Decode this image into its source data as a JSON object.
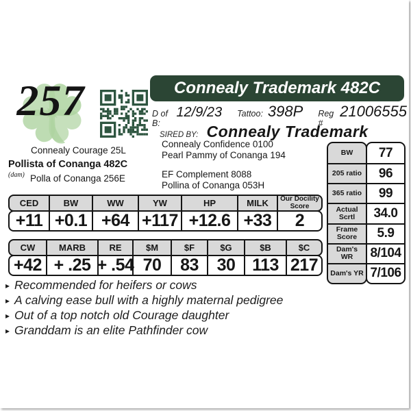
{
  "lot": {
    "number": "257"
  },
  "title_bar": {
    "title": "Connealy Trademark 482C"
  },
  "id_row": {
    "dob_label": "D of B:",
    "dob_value": "12/9/23",
    "tattoo_label": "Tattoo:",
    "tattoo_value": "398P",
    "reg_label": "Reg #",
    "reg_value": "21006555"
  },
  "sire_row": {
    "label": "SIRED BY:",
    "name": "Connealy Trademark"
  },
  "pedigree": {
    "dam_sire": "Connealy Courage 25L",
    "dam_name": "Pollista of Conanga 482C",
    "dam_tag": "(dam)",
    "dam_dam": "Polla of Conanga 256E",
    "sire_parents": [
      "Connealy Confidence 0100",
      "Pearl Pammy of Conanga 194"
    ],
    "dam_parents": [
      "EF Complement 8088",
      "Pollina of Conanga 053H"
    ]
  },
  "epd_primary": {
    "headers": [
      "CED",
      "BW",
      "WW",
      "YW",
      "HP",
      "MILK",
      "Our Docility Score"
    ],
    "values": [
      "+11",
      "+0.1",
      "+64",
      "+117",
      "+12.6",
      "+33",
      "2"
    ]
  },
  "epd_dollar": {
    "headers": [
      "CW",
      "MARB",
      "RE",
      "$M",
      "$F",
      "$G",
      "$B",
      "$C"
    ],
    "values": [
      "+42",
      "+ .25",
      "+ .54",
      "70",
      "83",
      "30",
      "113",
      "217"
    ]
  },
  "stats": {
    "rows": [
      {
        "label": "BW",
        "value": "77"
      },
      {
        "label": "205 ratio",
        "value": "96"
      },
      {
        "label": "365 ratio",
        "value": "99"
      },
      {
        "label": "Actual Scrtl",
        "value": "34.0"
      },
      {
        "label": "Frame Score",
        "value": "5.9"
      },
      {
        "label": "Dam's WR",
        "value": "8/104"
      },
      {
        "label": "Dam's YR",
        "value": "7/106"
      }
    ]
  },
  "notes": {
    "bullet": "▸",
    "items": [
      "Recommended for heifers or cows",
      "A calving ease bull with a highly maternal pedigree",
      "Out of a top notch old Courage daughter",
      "Granddam is an elite Pathfinder cow"
    ]
  },
  "icons": {
    "qr": "qr-code",
    "clover": "four-leaf-clover"
  },
  "colors": {
    "brand_green": "#2b4534",
    "qr_green": "#2e5540",
    "clover_green": "#aed3a0",
    "cell_gray": "#d9d9d9"
  }
}
